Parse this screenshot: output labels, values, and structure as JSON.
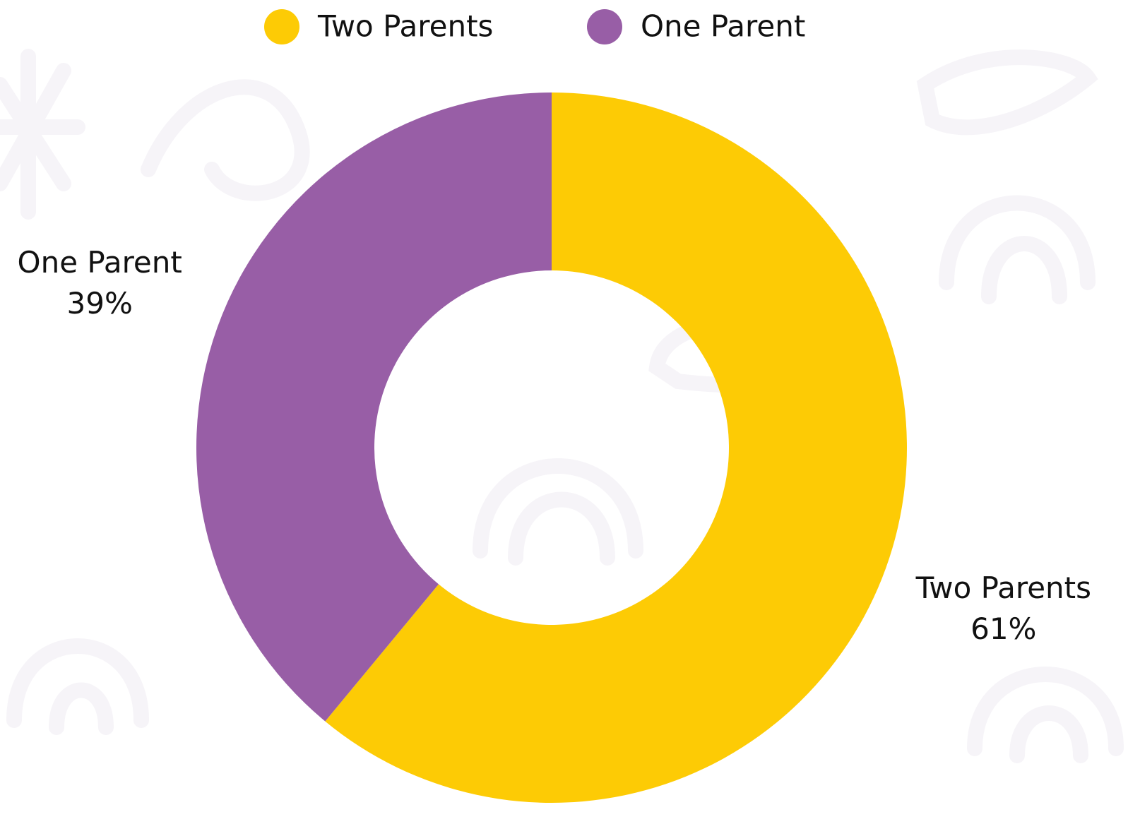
{
  "chart_data": {
    "type": "donut",
    "categories": [
      "Two Parents",
      "One Parent"
    ],
    "values": [
      61,
      39
    ],
    "value_labels": [
      "61%",
      "39%"
    ],
    "colors": [
      "#fdcb05",
      "#985ea6"
    ],
    "legend": "top"
  }
}
